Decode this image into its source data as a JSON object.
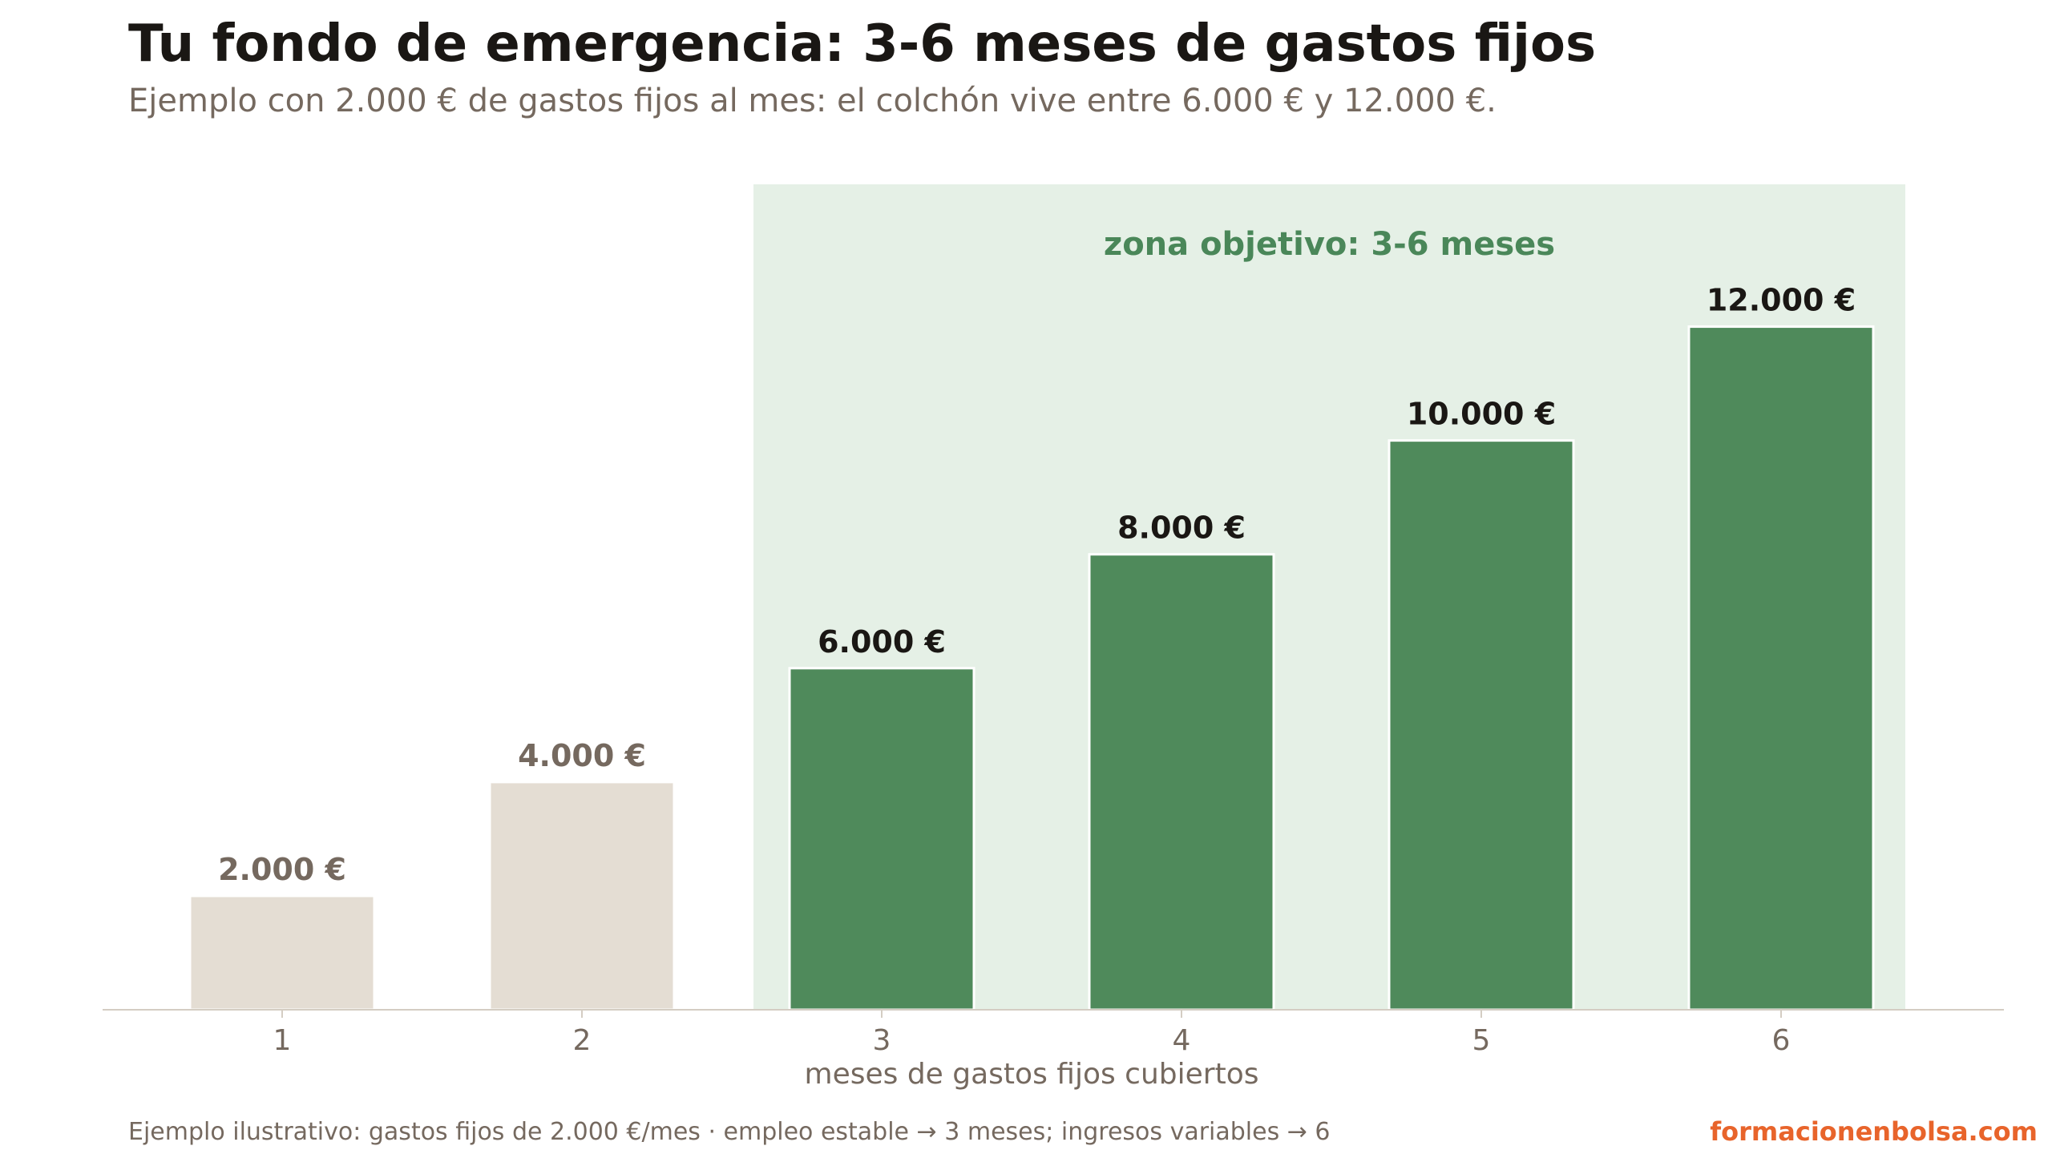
{
  "title": "Tu fondo de emergencia: 3-6 meses de gastos fijos",
  "subtitle": "Ejemplo con 2.000 € de gastos fijos al mes: el colchón vive entre 6.000 € y 12.000 €.",
  "footnote": "Ejemplo ilustrativo: gastos fijos de 2.000 €/mes · empleo estable → 3 meses; ingresos variables → 6",
  "brand": "formacionenbolsa.com",
  "colors": {
    "target_bar": "#4f8a5b",
    "outside_bar": "#e4ddd3",
    "target_zone": "#e5f0e6",
    "target_label": "#4a8759",
    "label_dark": "#1a1714",
    "label_muted": "#75695f",
    "brand": "#e8642b"
  },
  "chart_data": {
    "type": "bar",
    "categories": [
      "1",
      "2",
      "3",
      "4",
      "5",
      "6"
    ],
    "values": [
      2000,
      4000,
      6000,
      8000,
      10000,
      12000
    ],
    "data_labels": [
      "2.000 €",
      "4.000 €",
      "6.000 €",
      "8.000 €",
      "10.000 €",
      "12.000 €"
    ],
    "in_target": [
      false,
      false,
      true,
      true,
      true,
      true
    ],
    "xlabel": "meses de gastos fijos cubiertos",
    "ylabel": "",
    "ylim": [
      0,
      14500
    ],
    "grid": false,
    "annotation": {
      "text": "zona objetivo: 3-6 meses",
      "from_category": "3",
      "to_category": "6"
    }
  }
}
